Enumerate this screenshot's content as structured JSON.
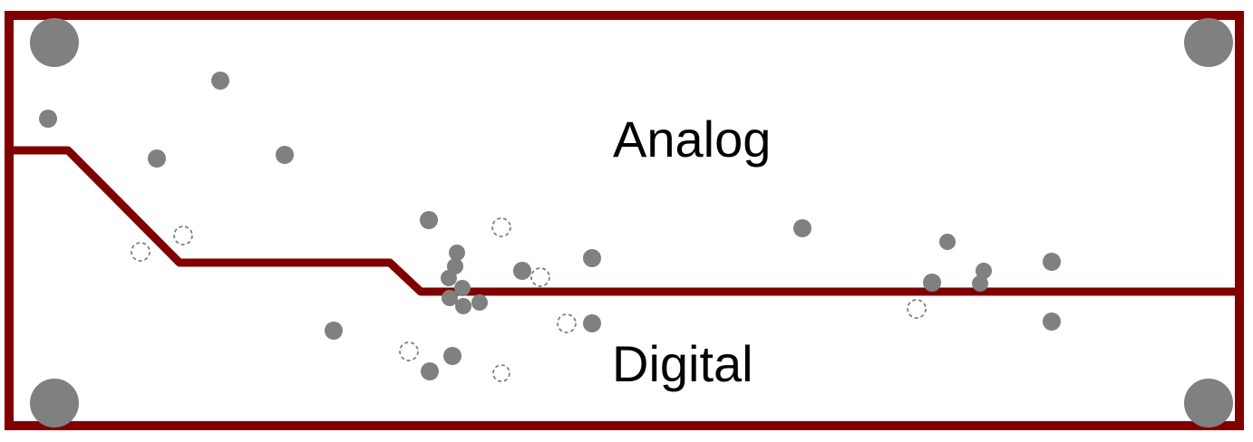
{
  "labels": {
    "analog": "Analog",
    "digital": "Digital"
  },
  "colors": {
    "board_outline": "#800000",
    "split_line": "#800000",
    "via_fill": "#808080",
    "via_outline_dashed": "#808080",
    "background": "#ffffff"
  },
  "elements": {
    "mounting_holes": "mounting-hole-icon",
    "filled_vias": "filled-via-icon",
    "empty_vias": "empty-via-icon"
  }
}
